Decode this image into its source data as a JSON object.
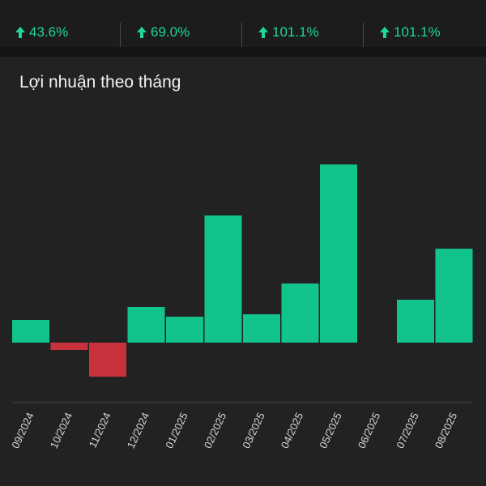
{
  "stats": [
    {
      "value": "43.6%",
      "direction": "up"
    },
    {
      "value": "69.0%",
      "direction": "up"
    },
    {
      "value": "101.1%",
      "direction": "up"
    },
    {
      "value": "101.1%",
      "direction": "up"
    }
  ],
  "chart_title": "Lợi nhuận theo tháng",
  "colors": {
    "positive": "#13c38c",
    "negative": "#c8323c",
    "accent_text": "#1fd6a0",
    "background": "#222222"
  },
  "chart_data": {
    "type": "bar",
    "title": "Lợi nhuận theo tháng",
    "categories": [
      "09/2024",
      "10/2024",
      "11/2024",
      "12/2024",
      "01/2025",
      "02/2025",
      "03/2025",
      "04/2025",
      "05/2025",
      "06/2025",
      "07/2025",
      "08/2025"
    ],
    "values": [
      28,
      -9,
      -42,
      44,
      32,
      157,
      35,
      73,
      220,
      0,
      53,
      116
    ],
    "xlabel": "",
    "ylabel": "",
    "grid": false,
    "legend": "none"
  }
}
